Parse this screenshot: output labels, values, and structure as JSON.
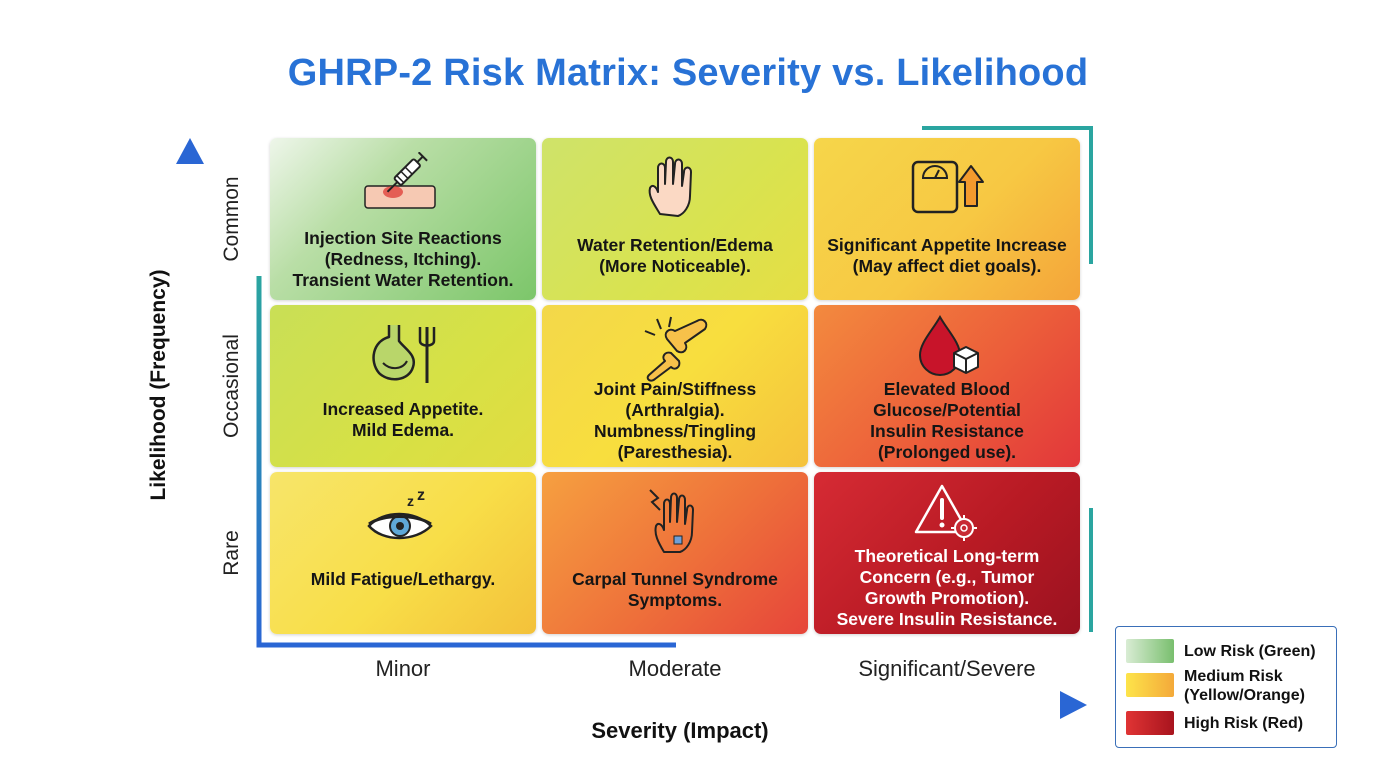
{
  "title": "GHRP-2 Risk Matrix: Severity vs. Likelihood",
  "y_axis": {
    "title": "Likelihood (Frequency)",
    "levels": [
      "Common",
      "Occasional",
      "Rare"
    ]
  },
  "x_axis": {
    "title": "Severity (Impact)",
    "levels": [
      "Minor",
      "Moderate",
      "Significant/Severe"
    ]
  },
  "cells": [
    {
      "likelihood": "Common",
      "severity": "Minor",
      "risk": "low",
      "icon": "syringe-icon",
      "text": "Injection Site Reactions\n(Redness, Itching).\nTransient Water Retention."
    },
    {
      "likelihood": "Common",
      "severity": "Moderate",
      "risk": "medium",
      "icon": "swollen-hand-icon",
      "text": "Water Retention/Edema\n(More Noticeable)."
    },
    {
      "likelihood": "Common",
      "severity": "Significant/Severe",
      "risk": "medium",
      "icon": "scale-arrow-up-icon",
      "text": "Significant Appetite Increase\n(May affect diet goals)."
    },
    {
      "likelihood": "Occasional",
      "severity": "Minor",
      "risk": "medium",
      "icon": "stomach-fork-icon",
      "text": "Increased Appetite.\nMild Edema."
    },
    {
      "likelihood": "Occasional",
      "severity": "Moderate",
      "risk": "medium",
      "icon": "joint-pain-icon",
      "text": "Joint Pain/Stiffness\n(Arthralgia).\nNumbness/Tingling\n(Paresthesia)."
    },
    {
      "likelihood": "Occasional",
      "severity": "Significant/Severe",
      "risk": "high",
      "icon": "blood-drop-sugar-icon",
      "text": "Elevated Blood\nGlucose/Potential\nInsulin Resistance\n(Prolonged use)."
    },
    {
      "likelihood": "Rare",
      "severity": "Minor",
      "risk": "medium",
      "icon": "sleepy-eye-icon",
      "text": "Mild Fatigue/Lethargy."
    },
    {
      "likelihood": "Rare",
      "severity": "Moderate",
      "risk": "high",
      "icon": "hand-nerve-icon",
      "text": "Carpal Tunnel Syndrome\nSymptoms."
    },
    {
      "likelihood": "Rare",
      "severity": "Significant/Severe",
      "risk": "high",
      "icon": "warning-cell-icon",
      "text": "Theoretical Long-term\nConcern (e.g., Tumor\nGrowth Promotion).\nSevere Insulin Resistance."
    }
  ],
  "legend": [
    {
      "label": "Low Risk (Green)",
      "color_from": "#d9ecd4",
      "color_to": "#79bf6e"
    },
    {
      "label": "Medium Risk\n(Yellow/Orange)",
      "color_from": "#fde44a",
      "color_to": "#f4a93a"
    },
    {
      "label": "High Risk (Red)",
      "color_from": "#e03434",
      "color_to": "#a8141e"
    }
  ],
  "colors": {
    "title": "#2872d6",
    "axis_blue": "#2a66d4",
    "axis_teal": "#2aa5a0"
  }
}
